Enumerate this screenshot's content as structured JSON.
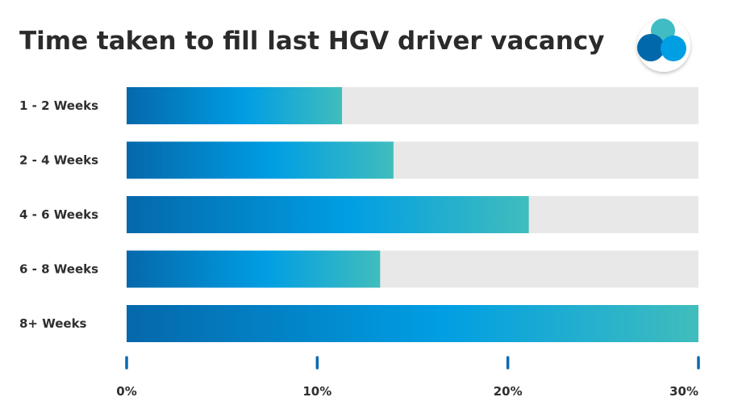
{
  "chart_data": {
    "type": "bar",
    "orientation": "horizontal",
    "title": "Time taken to fill last HGV driver vacancy",
    "categories": [
      "1 - 2 Weeks",
      "2 - 4 Weeks",
      "4 - 6 Weeks",
      "6 - 8 Weeks",
      "8+ Weeks"
    ],
    "values": [
      11.3,
      14,
      21.1,
      13.3,
      30
    ],
    "xlim": [
      0,
      30
    ],
    "x_ticks": [
      0,
      10,
      20,
      30
    ],
    "x_tick_labels": [
      "0%",
      "10%",
      "20%",
      "30%"
    ],
    "grid": false,
    "legend": "none"
  },
  "colors": {
    "bar_gradient_start": "#0568ab",
    "bar_gradient_mid": "#009ee3",
    "bar_gradient_end": "#40bdbd",
    "bar_track": "#e8e8e8",
    "tick_mark": "#0a6ab0",
    "text": "#2b2b2b"
  },
  "logo": {
    "icon": "three-circles-logo-icon",
    "colors": [
      "#3fbdc4",
      "#0568ab",
      "#009ee3"
    ]
  }
}
